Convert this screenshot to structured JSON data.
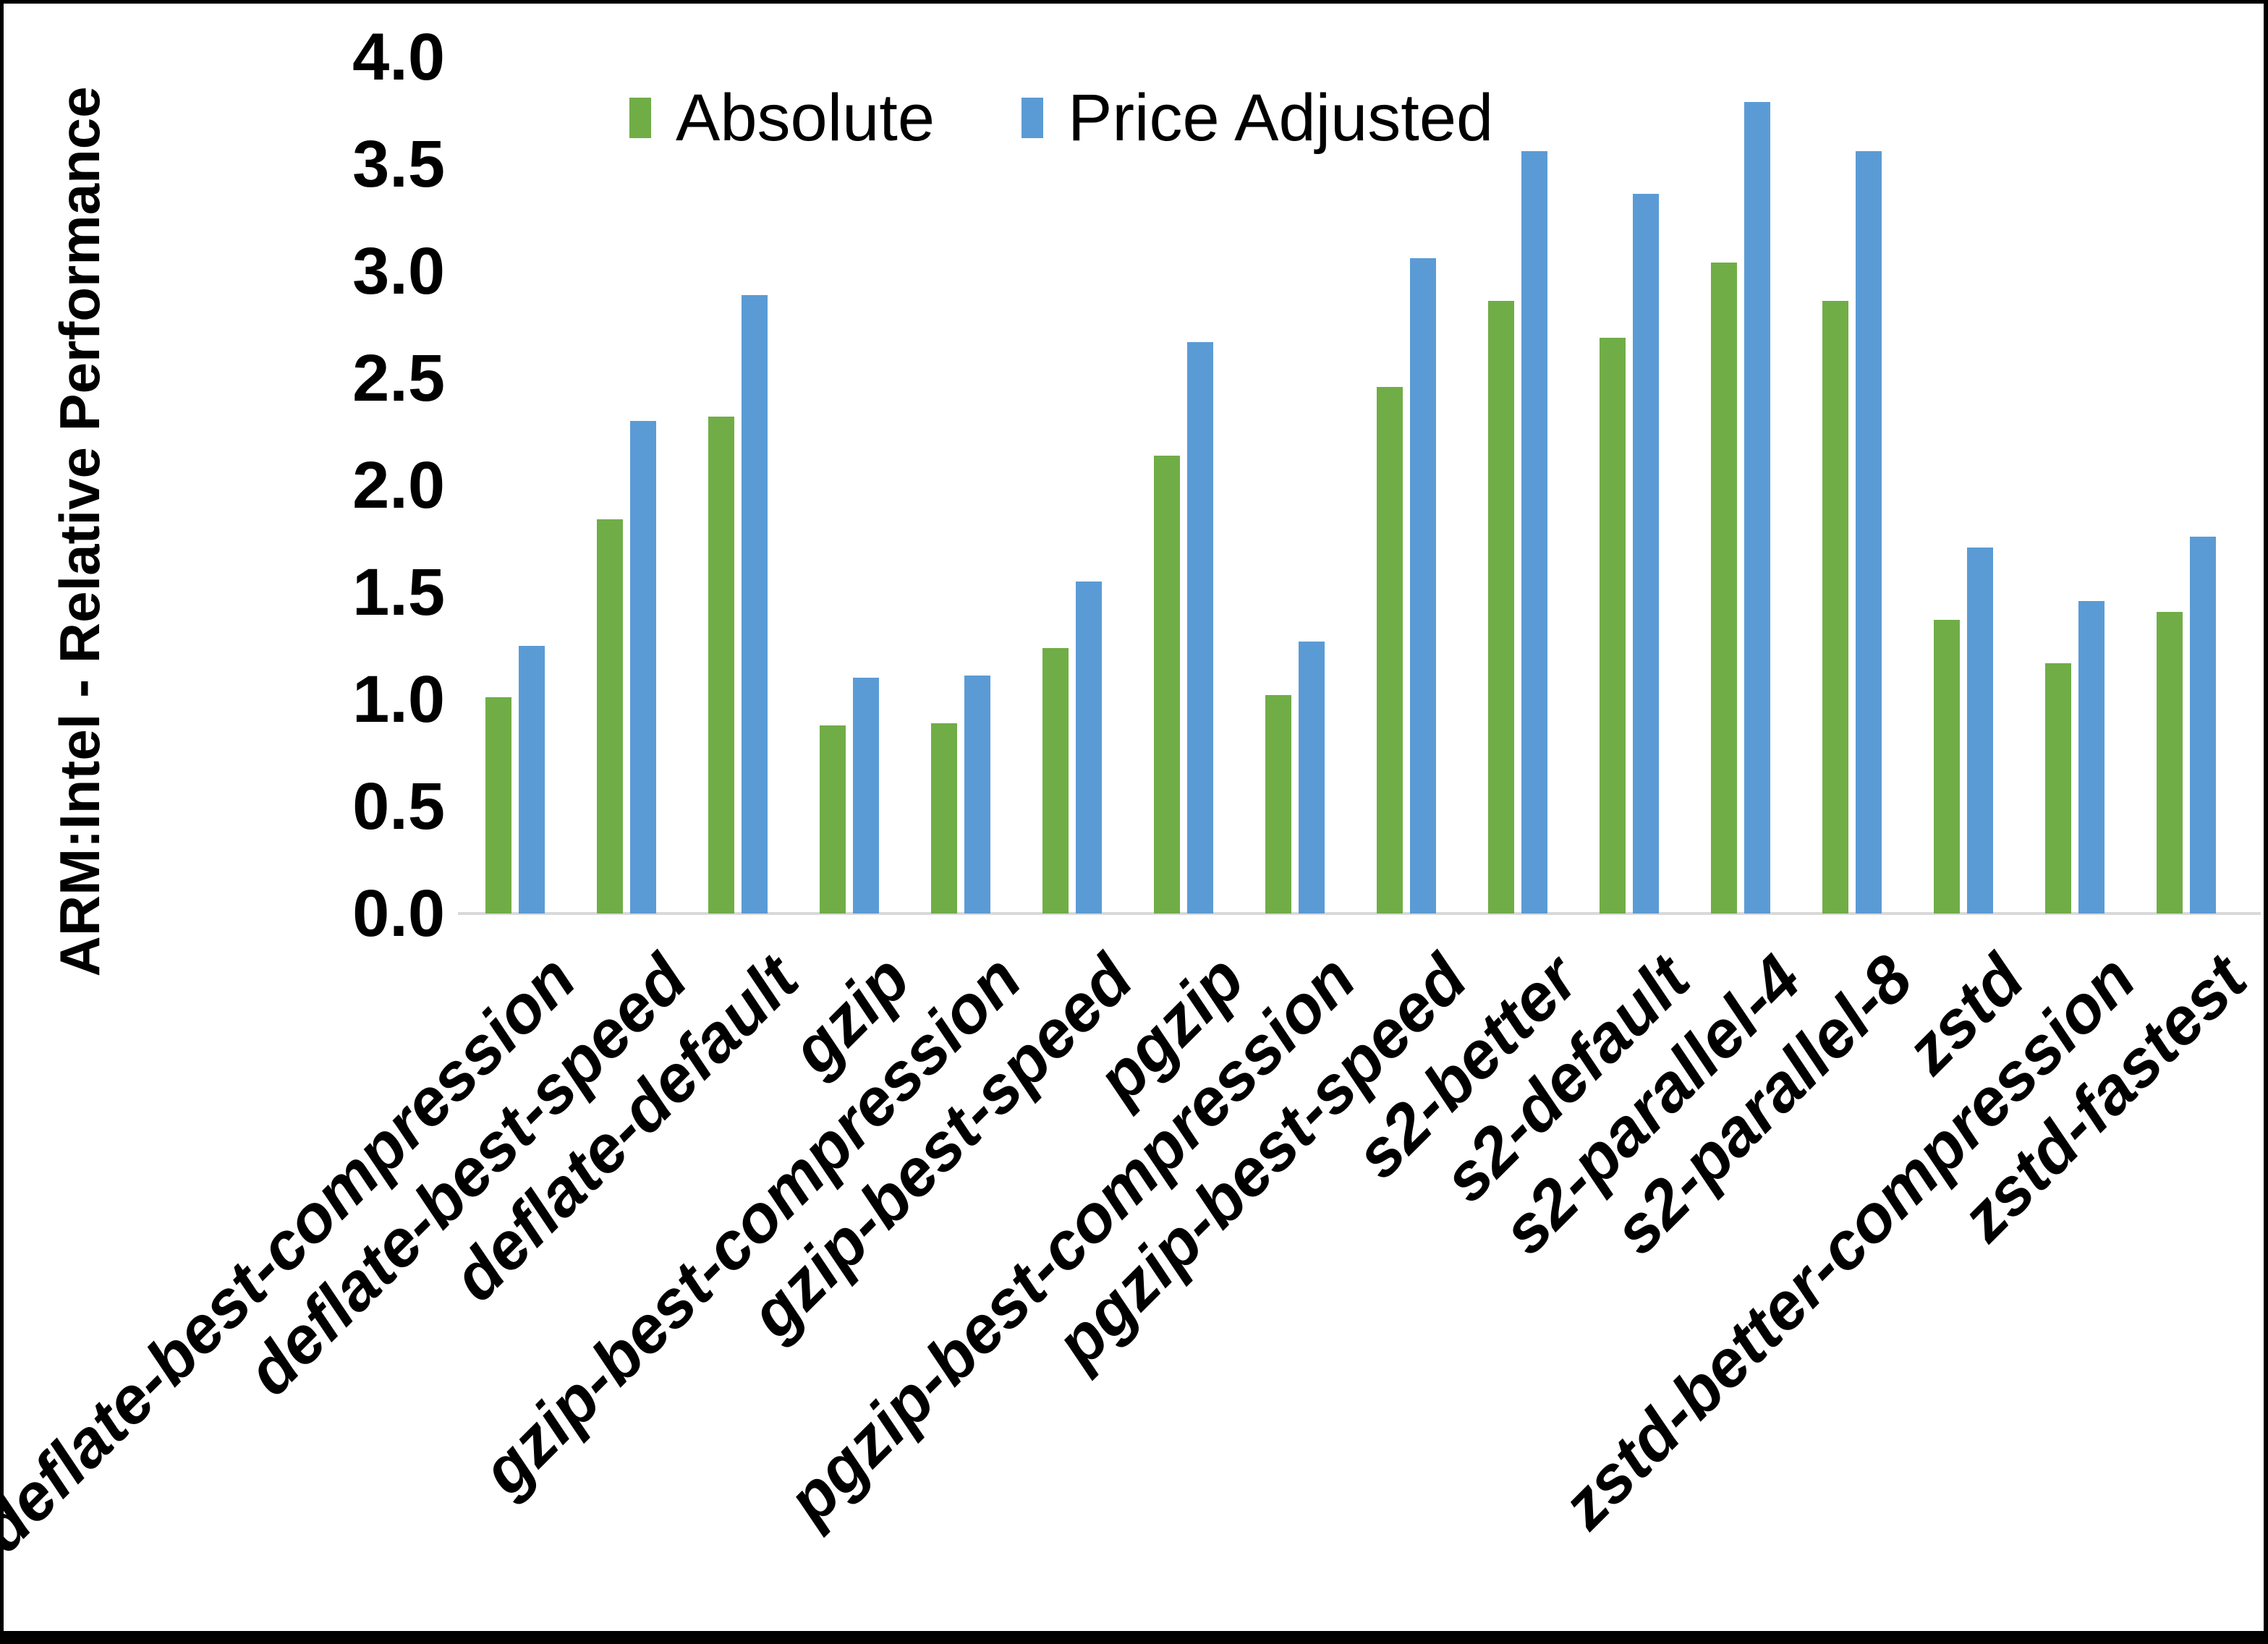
{
  "chart_data": {
    "type": "bar",
    "title": "",
    "xlabel": "",
    "ylabel": "ARM:Intel - Relative Performance",
    "ylim": [
      0.0,
      4.0
    ],
    "ytick_step": 0.5,
    "yticks": [
      "0.0",
      "0.5",
      "1.0",
      "1.5",
      "2.0",
      "2.5",
      "3.0",
      "3.5",
      "4.0"
    ],
    "grid": false,
    "legend_position": "top-center",
    "categories": [
      "deflate-best-compression",
      "deflate-best-speed",
      "deflate-default",
      "gzip",
      "gzip-best-compression",
      "gzip-best-speed",
      "pgzip",
      "pgzip-best-compression",
      "pgzip-best-speed",
      "s2-better",
      "s2-default",
      "s2-parallel-4",
      "s2-parallel-8",
      "zstd",
      "zstd-better-compression",
      "zstd-fastest"
    ],
    "series": [
      {
        "name": "Absolute",
        "color": "#70AD47",
        "values": [
          1.01,
          1.84,
          2.32,
          0.88,
          0.89,
          1.24,
          2.14,
          1.02,
          2.46,
          2.86,
          2.69,
          3.04,
          2.86,
          1.37,
          1.17,
          1.41
        ]
      },
      {
        "name": "Price Adjusted",
        "color": "#5B9BD5",
        "values": [
          1.25,
          2.3,
          2.89,
          1.1,
          1.11,
          1.55,
          2.67,
          1.27,
          3.06,
          3.56,
          3.36,
          3.79,
          3.56,
          1.71,
          1.46,
          1.76
        ]
      }
    ],
    "axis_line_color": "#D9D9D9",
    "frame_border_color": "#000000"
  }
}
